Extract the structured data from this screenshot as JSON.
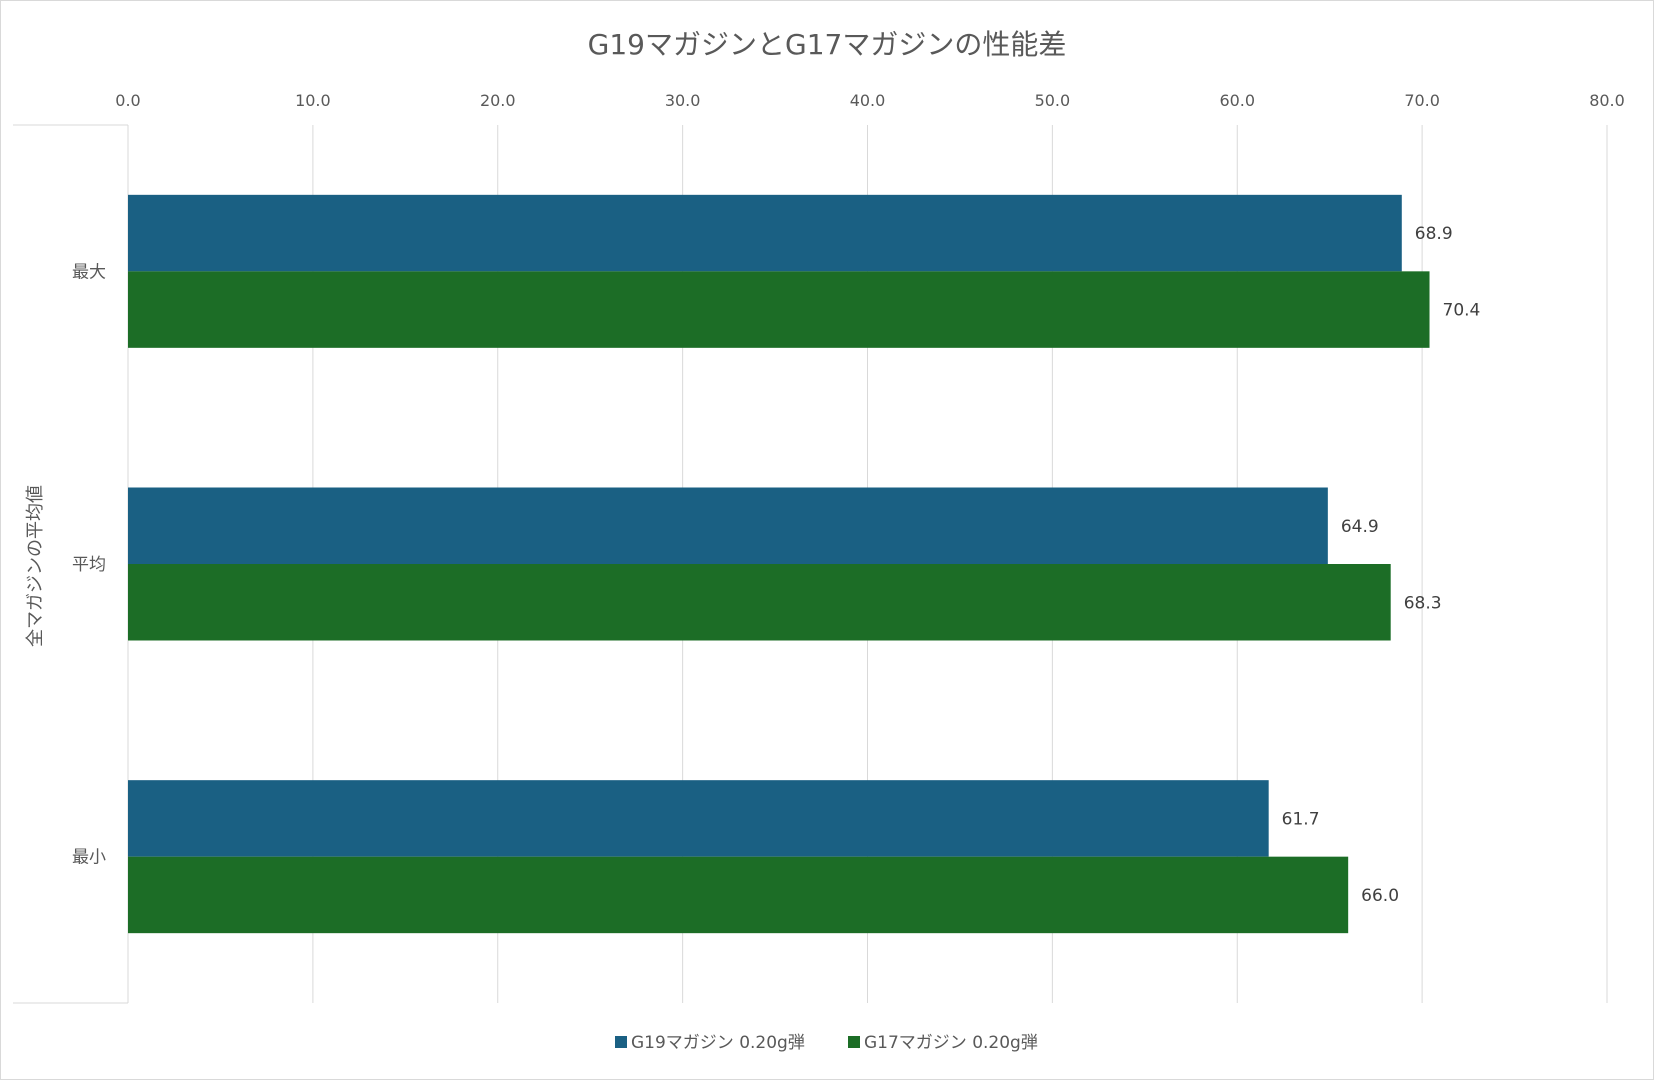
{
  "chart_data": {
    "type": "bar",
    "orientation": "horizontal",
    "title": "G19マガジンとG17マガジンの性能差",
    "ylabel": "全マガジンの平均値",
    "xlabel": "",
    "categories": [
      "最大",
      "平均",
      "最小"
    ],
    "series": [
      {
        "name": "G19マガジン 0.20g弾",
        "color": "#1a6083",
        "values": [
          68.9,
          64.9,
          61.7
        ]
      },
      {
        "name": "G17マガジン 0.20g弾",
        "color": "#1c6d26",
        "values": [
          70.4,
          68.3,
          66.0
        ]
      }
    ],
    "xlim": [
      0,
      80
    ],
    "xticks": [
      "0.0",
      "10.0",
      "20.0",
      "30.0",
      "40.0",
      "50.0",
      "60.0",
      "70.0",
      "80.0"
    ],
    "x_axis_position": "top",
    "grid": true,
    "legend_position": "bottom",
    "data_labels": true
  }
}
